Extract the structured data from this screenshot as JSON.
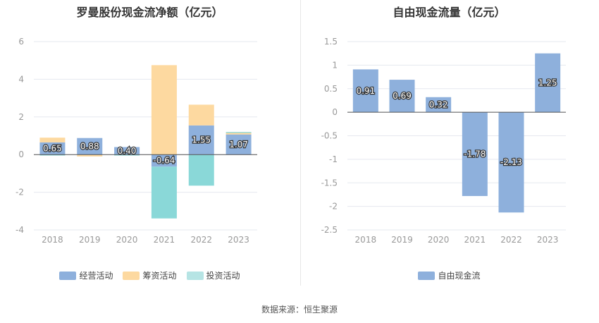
{
  "source": "数据来源：恒生聚源",
  "colors": {
    "operating": "#8eb0dc",
    "financing": "#fdd9a0",
    "investing": "#8ad8d8",
    "investing_legend": "#b6e4e4",
    "free_cash": "#8eb0dc",
    "axis": "#999999",
    "grid": "#e5e8ef"
  },
  "chart_data": [
    {
      "type": "bar",
      "stacked": true,
      "title": "罗曼股份现金流净额（亿元）",
      "categories": [
        "2018",
        "2019",
        "2020",
        "2021",
        "2022",
        "2023"
      ],
      "ylim": [
        -4,
        6
      ],
      "yticks": [
        "-4",
        "-2",
        "0",
        "2",
        "4",
        "6"
      ],
      "grid": true,
      "legend_position": "bottom",
      "series": [
        {
          "name": "经营活动",
          "values": [
            0.65,
            0.88,
            0.4,
            -0.64,
            1.55,
            1.07
          ],
          "labels": [
            "0.65",
            "0.88",
            "0.40",
            "-0.64",
            "1.55",
            "1.07"
          ]
        },
        {
          "name": "筹资活动",
          "values": [
            0.25,
            -0.1,
            0.0,
            4.75,
            1.1,
            0.08
          ]
        },
        {
          "name": "投资活动",
          "values": [
            -0.05,
            0.0,
            -0.05,
            -2.75,
            -1.65,
            0.05
          ]
        }
      ]
    },
    {
      "type": "bar",
      "title": "自由现金流量（亿元）",
      "categories": [
        "2018",
        "2019",
        "2020",
        "2021",
        "2022",
        "2023"
      ],
      "ylim": [
        -2.5,
        1.5
      ],
      "yticks": [
        "-2.5",
        "-2",
        "-1.5",
        "-1",
        "-0.5",
        "0",
        "0.5",
        "1",
        "1.5"
      ],
      "grid": true,
      "legend_position": "bottom",
      "series": [
        {
          "name": "自由现金流",
          "values": [
            0.91,
            0.69,
            0.32,
            -1.78,
            -2.13,
            1.25
          ],
          "labels": [
            "0.91",
            "0.69",
            "0.32",
            "-1.78",
            "-2.13",
            "1.25"
          ]
        }
      ]
    }
  ]
}
